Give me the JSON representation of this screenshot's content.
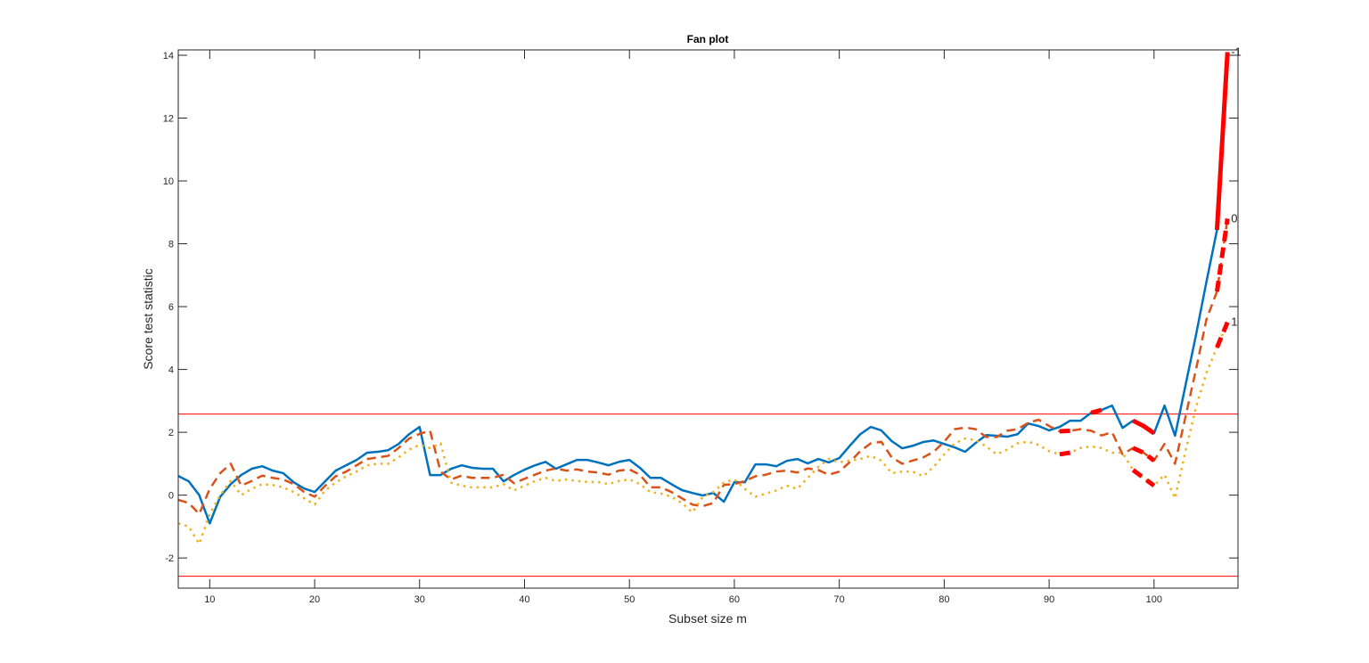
{
  "chart_data": {
    "type": "line",
    "title": "Fan plot",
    "xlabel": "Subset size m",
    "ylabel": "Score test statistic",
    "xlim": [
      7,
      108
    ],
    "ylim": [
      -2.96,
      14.17
    ],
    "xticks": [
      10,
      20,
      30,
      40,
      50,
      60,
      70,
      80,
      90,
      100
    ],
    "yticks": [
      -2,
      0,
      2,
      4,
      6,
      8,
      10,
      12,
      14
    ],
    "grid": false,
    "reference_lines": {
      "values": [
        2.58,
        -2.58
      ],
      "color": "#FF0000"
    },
    "highlight_color": "#FF0000",
    "x_start": 7,
    "series": [
      {
        "end_label": "-1",
        "color": "#0072BD",
        "style": "solid",
        "highlight_ranges": [
          [
            94,
            95
          ],
          [
            98,
            100
          ],
          [
            106,
            107
          ]
        ],
        "values": [
          0.61,
          0.44,
          0,
          -0.9,
          -0.05,
          0.35,
          0.64,
          0.84,
          0.92,
          0.78,
          0.7,
          0.41,
          0.21,
          0.1,
          0.44,
          0.78,
          0.95,
          1.12,
          1.35,
          1.38,
          1.43,
          1.63,
          1.94,
          2.17,
          0.64,
          0.64,
          0.84,
          0.95,
          0.87,
          0.84,
          0.84,
          0.44,
          0.64,
          0.81,
          0.95,
          1.06,
          0.84,
          0.98,
          1.12,
          1.12,
          1.04,
          0.95,
          1.06,
          1.12,
          0.87,
          0.55,
          0.55,
          0.35,
          0.16,
          0.07,
          -0.01,
          0.07,
          -0.21,
          0.41,
          0.41,
          0.98,
          0.98,
          0.92,
          1.09,
          1.15,
          1.01,
          1.15,
          1.04,
          1.18,
          1.57,
          1.94,
          2.17,
          2.06,
          1.72,
          1.49,
          1.57,
          1.69,
          1.74,
          1.63,
          1.52,
          1.38,
          1.66,
          1.91,
          1.89,
          1.86,
          1.94,
          2.28,
          2.2,
          2.06,
          2.17,
          2.37,
          2.37,
          2.62,
          2.71,
          2.85,
          2.14,
          2.37,
          2.2,
          1.97,
          2.85,
          1.89,
          3.5,
          5.1,
          6.8,
          8.44,
          14.1
        ]
      },
      {
        "end_label": "0",
        "color": "#D95319",
        "style": "dashed",
        "highlight_ranges": [
          [
            91,
            92
          ],
          [
            98,
            100
          ],
          [
            106,
            107
          ]
        ],
        "values": [
          -0.15,
          -0.25,
          -0.6,
          0.2,
          0.7,
          1.0,
          0.3,
          0.45,
          0.62,
          0.55,
          0.5,
          0.35,
          0.1,
          -0.05,
          0.3,
          0.6,
          0.75,
          0.95,
          1.15,
          1.2,
          1.25,
          1.5,
          1.8,
          1.95,
          2.05,
          0.75,
          0.5,
          0.62,
          0.55,
          0.55,
          0.55,
          0.65,
          0.38,
          0.52,
          0.65,
          0.78,
          0.85,
          0.78,
          0.82,
          0.75,
          0.72,
          0.65,
          0.78,
          0.82,
          0.65,
          0.25,
          0.25,
          0.1,
          -0.1,
          -0.3,
          -0.35,
          -0.25,
          0.33,
          0.35,
          0.45,
          0.6,
          0.65,
          0.75,
          0.78,
          0.72,
          0.85,
          0.8,
          0.65,
          0.75,
          1.05,
          1.4,
          1.65,
          1.7,
          1.2,
          1.0,
          1.1,
          1.2,
          1.38,
          1.7,
          2.1,
          2.15,
          2.1,
          1.85,
          1.85,
          2.05,
          2.1,
          2.3,
          2.4,
          2.2,
          2.03,
          2.05,
          2.1,
          2.05,
          1.9,
          2.0,
          1.3,
          1.5,
          1.35,
          1.1,
          1.63,
          1.0,
          2.5,
          4.0,
          5.6,
          6.48,
          8.8
        ]
      },
      {
        "end_label": "1",
        "color": "#EDB120",
        "style": "dotted",
        "highlight_ranges": [
          [
            91,
            92
          ],
          [
            98,
            100
          ],
          [
            106,
            107
          ]
        ],
        "values": [
          -0.9,
          -1.0,
          -1.55,
          -0.6,
          0.0,
          0.45,
          0.0,
          0.2,
          0.35,
          0.32,
          0.25,
          0.1,
          -0.1,
          -0.3,
          0.15,
          0.4,
          0.6,
          0.75,
          0.95,
          1.0,
          1.0,
          1.2,
          1.45,
          1.6,
          1.5,
          1.65,
          0.4,
          0.3,
          0.25,
          0.25,
          0.25,
          0.35,
          0.15,
          0.3,
          0.45,
          0.55,
          0.45,
          0.5,
          0.45,
          0.42,
          0.42,
          0.35,
          0.45,
          0.5,
          0.35,
          0.1,
          0.05,
          -0.05,
          -0.25,
          -0.55,
          -0.05,
          0.1,
          0.4,
          0.5,
          0.2,
          -0.05,
          0.05,
          0.15,
          0.3,
          0.2,
          0.55,
          0.9,
          1.15,
          1.05,
          1.1,
          1.15,
          1.25,
          1.1,
          0.7,
          0.75,
          0.75,
          0.6,
          0.9,
          1.3,
          1.65,
          1.8,
          1.75,
          1.55,
          1.3,
          1.45,
          1.65,
          1.7,
          1.6,
          1.4,
          1.3,
          1.35,
          1.5,
          1.55,
          1.5,
          1.35,
          1.35,
          0.8,
          0.55,
          0.3,
          0.65,
          -0.1,
          1.4,
          2.8,
          3.9,
          4.7,
          5.5
        ]
      }
    ]
  }
}
